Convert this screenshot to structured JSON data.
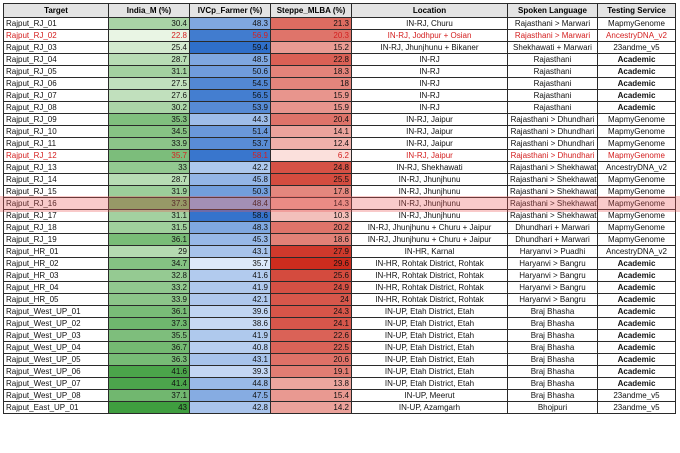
{
  "table": {
    "headers": [
      "Target",
      "India_M (%)",
      "IVCp_Farmer (%)",
      "Steppe_MLBA (%)",
      "Location",
      "Spoken Language",
      "Testing Service"
    ],
    "highlighted_row": "Rajput_RJ_16",
    "colors": {
      "india_low": "#e9f5e4",
      "india_high": "#3f9e3f",
      "ivc_low": "#dde9fa",
      "ivc_high": "#2f6fca",
      "steppe_low": "#fbe0dc",
      "steppe_high": "#cc2c1e",
      "highlight_text": "#d42020",
      "row_highlight": "#ec5a5a"
    },
    "rows": [
      {
        "target": "Rajput_RJ_01",
        "india": 30.4,
        "ivc": 48.3,
        "steppe": 21.3,
        "location": "IN-RJ, Churu",
        "language": "Rajasthani > Marwari",
        "service": "MapmyGenome",
        "red": false,
        "bold": false
      },
      {
        "target": "Rajput_RJ_02",
        "india": 22.8,
        "ivc": 56.9,
        "steppe": 20.3,
        "location": "IN-RJ, Jodhpur + Osian",
        "language": "Rajasthani > Marwari",
        "service": "AncestryDNA_v2",
        "red": true,
        "bold": false
      },
      {
        "target": "Rajput_RJ_03",
        "india": 25.4,
        "ivc": 59.4,
        "steppe": 15.2,
        "location": "IN-RJ, Jhunjhunu + Bikaner",
        "language": "Shekhawati + Marwari",
        "service": "23andme_v5",
        "red": false,
        "bold": false
      },
      {
        "target": "Rajput_RJ_04",
        "india": 28.7,
        "ivc": 48.5,
        "steppe": 22.8,
        "location": "IN-RJ",
        "language": "Rajasthani",
        "service": "Academic",
        "red": false,
        "bold": true
      },
      {
        "target": "Rajput_RJ_05",
        "india": 31.1,
        "ivc": 50.6,
        "steppe": 18.3,
        "location": "IN-RJ",
        "language": "Rajasthani",
        "service": "Academic",
        "red": false,
        "bold": true
      },
      {
        "target": "Rajput_RJ_06",
        "india": 27.5,
        "ivc": 54.5,
        "steppe": 18,
        "location": "IN-RJ",
        "language": "Rajasthani",
        "service": "Academic",
        "red": false,
        "bold": true
      },
      {
        "target": "Rajput_RJ_07",
        "india": 27.6,
        "ivc": 56.5,
        "steppe": 15.9,
        "location": "IN-RJ",
        "language": "Rajasthani",
        "service": "Academic",
        "red": false,
        "bold": true
      },
      {
        "target": "Rajput_RJ_08",
        "india": 30.2,
        "ivc": 53.9,
        "steppe": 15.9,
        "location": "IN-RJ",
        "language": "Rajasthani",
        "service": "Academic",
        "red": false,
        "bold": true
      },
      {
        "target": "Rajput_RJ_09",
        "india": 35.3,
        "ivc": 44.3,
        "steppe": 20.4,
        "location": "IN-RJ, Jaipur",
        "language": "Rajasthani > Dhundhari",
        "service": "MapmyGenome",
        "red": false,
        "bold": false
      },
      {
        "target": "Rajput_RJ_10",
        "india": 34.5,
        "ivc": 51.4,
        "steppe": 14.1,
        "location": "IN-RJ, Jaipur",
        "language": "Rajasthani > Dhundhari",
        "service": "MapmyGenome",
        "red": false,
        "bold": false
      },
      {
        "target": "Rajput_RJ_11",
        "india": 33.9,
        "ivc": 53.7,
        "steppe": 12.4,
        "location": "IN-RJ, Jaipur",
        "language": "Rajasthani > Dhundhari",
        "service": "MapmyGenome",
        "red": false,
        "bold": false
      },
      {
        "target": "Rajput_RJ_12",
        "india": 35.7,
        "ivc": 58.1,
        "steppe": 6.2,
        "location": "IN-RJ, Jaipur",
        "language": "Rajasthani > Dhundhari",
        "service": "MapmyGenome",
        "red": true,
        "bold": false
      },
      {
        "target": "Rajput_RJ_13",
        "india": 33,
        "ivc": 42.2,
        "steppe": 24.8,
        "location": "IN-RJ, Shekhawati",
        "language": "Rajasthani > Shekhawati",
        "service": "AncestryDNA_v2",
        "red": false,
        "bold": false
      },
      {
        "target": "Rajput_RJ_14",
        "india": 28.7,
        "ivc": 45.8,
        "steppe": 25.5,
        "location": "IN-RJ, Jhunjhunu",
        "language": "Rajasthani > Shekhawati",
        "service": "MapmyGenome",
        "red": false,
        "bold": false
      },
      {
        "target": "Rajput_RJ_15",
        "india": 31.9,
        "ivc": 50.3,
        "steppe": 17.8,
        "location": "IN-RJ, Jhunjhunu",
        "language": "Rajasthani > Shekhawati",
        "service": "MapmyGenome",
        "red": false,
        "bold": false
      },
      {
        "target": "Rajput_RJ_16",
        "india": 37.3,
        "ivc": 48.4,
        "steppe": 14.3,
        "location": "IN-RJ, Jhunjhunu",
        "language": "Rajasthani > Shekhawati",
        "service": "MapmyGenome",
        "red": false,
        "bold": false
      },
      {
        "target": "Rajput_RJ_17",
        "india": 31.1,
        "ivc": 58.6,
        "steppe": 10.3,
        "location": "IN-RJ, Jhunjhunu",
        "language": "Rajasthani > Shekhawati",
        "service": "MapmyGenome",
        "red": false,
        "bold": false
      },
      {
        "target": "Rajput_RJ_18",
        "india": 31.5,
        "ivc": 48.3,
        "steppe": 20.2,
        "location": "IN-RJ, Jhunjhunu + Churu + Jaipur",
        "language": "Dhundhari + Marwari",
        "service": "MapmyGenome",
        "red": false,
        "bold": false
      },
      {
        "target": "Rajput_RJ_19",
        "india": 36.1,
        "ivc": 45.3,
        "steppe": 18.6,
        "location": "IN-RJ, Jhunjhunu + Churu + Jaipur",
        "language": "Dhundhari + Marwari",
        "service": "MapmyGenome",
        "red": false,
        "bold": false
      },
      {
        "target": "Rajput_HR_01",
        "india": 29,
        "ivc": 43.1,
        "steppe": 27.9,
        "location": "IN-HR, Karnal",
        "language": "Haryanvi > Puadhi",
        "service": "AncestryDNA_v2",
        "red": false,
        "bold": false
      },
      {
        "target": "Rajput_HR_02",
        "india": 34.7,
        "ivc": 35.7,
        "steppe": 29.6,
        "location": "IN-HR, Rohtak District, Rohtak",
        "language": "Haryanvi > Bangru",
        "service": "Academic",
        "red": false,
        "bold": true
      },
      {
        "target": "Rajput_HR_03",
        "india": 32.8,
        "ivc": 41.6,
        "steppe": 25.6,
        "location": "IN-HR, Rohtak District, Rohtak",
        "language": "Haryanvi > Bangru",
        "service": "Academic",
        "red": false,
        "bold": true
      },
      {
        "target": "Rajput_HR_04",
        "india": 33.2,
        "ivc": 41.9,
        "steppe": 24.9,
        "location": "IN-HR, Rohtak District, Rohtak",
        "language": "Haryanvi > Bangru",
        "service": "Academic",
        "red": false,
        "bold": true
      },
      {
        "target": "Rajput_HR_05",
        "india": 33.9,
        "ivc": 42.1,
        "steppe": 24,
        "location": "IN-HR, Rohtak District, Rohtak",
        "language": "Haryanvi > Bangru",
        "service": "Academic",
        "red": false,
        "bold": true
      },
      {
        "target": "Rajput_West_UP_01",
        "india": 36.1,
        "ivc": 39.6,
        "steppe": 24.3,
        "location": "IN-UP, Etah District, Etah",
        "language": "Braj Bhasha",
        "service": "Academic",
        "red": false,
        "bold": true
      },
      {
        "target": "Rajput_West_UP_02",
        "india": 37.3,
        "ivc": 38.6,
        "steppe": 24.1,
        "location": "IN-UP, Etah District, Etah",
        "language": "Braj Bhasha",
        "service": "Academic",
        "red": false,
        "bold": true
      },
      {
        "target": "Rajput_West_UP_03",
        "india": 35.5,
        "ivc": 41.9,
        "steppe": 22.6,
        "location": "IN-UP, Etah District, Etah",
        "language": "Braj Bhasha",
        "service": "Academic",
        "red": false,
        "bold": true
      },
      {
        "target": "Rajput_West_UP_04",
        "india": 36.7,
        "ivc": 40.8,
        "steppe": 22.5,
        "location": "IN-UP, Etah District, Etah",
        "language": "Braj Bhasha",
        "service": "Academic",
        "red": false,
        "bold": true
      },
      {
        "target": "Rajput_West_UP_05",
        "india": 36.3,
        "ivc": 43.1,
        "steppe": 20.6,
        "location": "IN-UP, Etah District, Etah",
        "language": "Braj Bhasha",
        "service": "Academic",
        "red": false,
        "bold": true
      },
      {
        "target": "Rajput_West_UP_06",
        "india": 41.6,
        "ivc": 39.3,
        "steppe": 19.1,
        "location": "IN-UP, Etah District, Etah",
        "language": "Braj Bhasha",
        "service": "Academic",
        "red": false,
        "bold": true
      },
      {
        "target": "Rajput_West_UP_07",
        "india": 41.4,
        "ivc": 44.8,
        "steppe": 13.8,
        "location": "IN-UP, Etah District, Etah",
        "language": "Braj Bhasha",
        "service": "Academic",
        "red": false,
        "bold": true
      },
      {
        "target": "Rajput_West_UP_08",
        "india": 37.1,
        "ivc": 47.5,
        "steppe": 15.4,
        "location": "IN-UP, Meerut",
        "language": "Braj Bhasha",
        "service": "23andme_v5",
        "red": false,
        "bold": false
      },
      {
        "target": "Rajput_East_UP_01",
        "india": 43,
        "ivc": 42.8,
        "steppe": 14.2,
        "location": "IN-UP, Azamgarh",
        "language": "Bhojpuri",
        "service": "23andme_v5",
        "red": false,
        "bold": false
      }
    ]
  }
}
